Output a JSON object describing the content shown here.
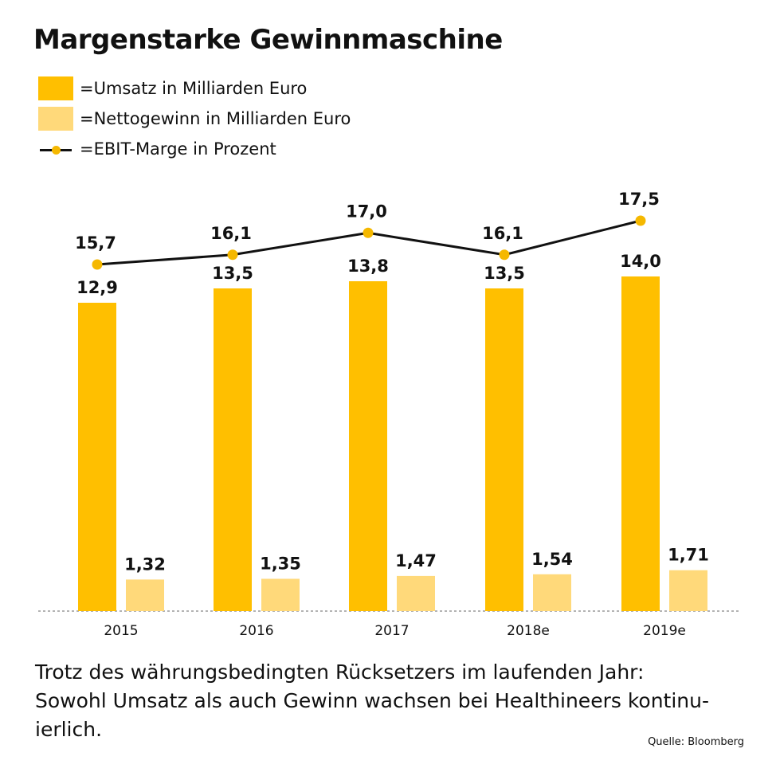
{
  "title": "Margenstarke Gewinnmaschine",
  "legend": [
    {
      "label": "=Umsatz in Milliarden Euro",
      "color": "#FFBF00",
      "kind": "bar"
    },
    {
      "label": "=Nettogewinn in Milliarden Euro",
      "color": "#FFD97A",
      "kind": "bar"
    },
    {
      "label": "=EBIT-Marge in Prozent",
      "color": "#111111",
      "marker_color": "#F5B800",
      "kind": "line-marker"
    }
  ],
  "caption": {
    "line1": "Trotz des währungsbedingten Rücksetzers im laufenden Jahr:",
    "line2": "Sowohl Umsatz als auch Gewinn wachsen bei Healthineers kontinu-",
    "line3": "ierlich."
  },
  "source": "Quelle: Bloomberg",
  "chart_data": {
    "type": "bar",
    "categories": [
      "2015",
      "2016",
      "2017",
      "2018e",
      "2019e"
    ],
    "series": [
      {
        "name": "=Umsatz in Milliarden Euro",
        "type": "bar",
        "color": "#FFBF00",
        "values": [
          12.9,
          13.5,
          13.8,
          13.5,
          14.0
        ],
        "labels": [
          "12,9",
          "13,5",
          "13,8",
          "13,5",
          "14,0"
        ]
      },
      {
        "name": "=Nettogewinn in Milliarden Euro",
        "type": "bar",
        "color": "#FFD97A",
        "values": [
          1.32,
          1.35,
          1.47,
          1.54,
          1.71
        ],
        "labels": [
          "1,32",
          "1,35",
          "1,47",
          "1,54",
          "1,71"
        ]
      },
      {
        "name": "=EBIT-Marge in Prozent",
        "type": "line",
        "color": "#111111",
        "marker_color": "#F5B800",
        "values": [
          15.7,
          16.1,
          17.0,
          16.1,
          17.5
        ],
        "labels": [
          "15,7",
          "16,1",
          "17,0",
          "16,1",
          "17,5"
        ]
      }
    ],
    "xlabel": "",
    "ylabel": "",
    "ylim": [
      0,
      14.0
    ],
    "grid": false,
    "legend_position": "top-left"
  }
}
